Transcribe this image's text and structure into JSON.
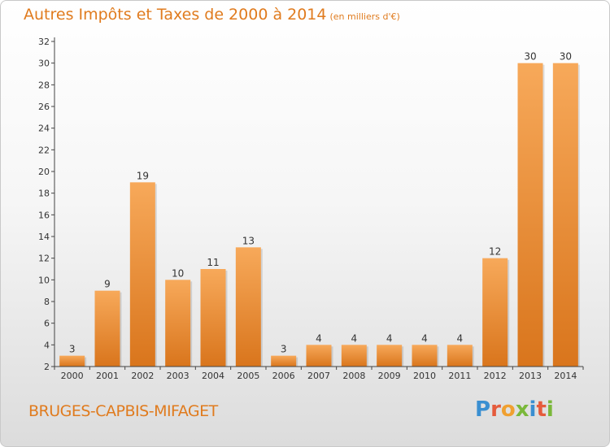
{
  "page": {
    "title": "Autres Impôts et Taxes de 2000 à 2014",
    "subtitle": "(en milliers d'€)",
    "commune": "BRUGES-CAPBIS-MIFAGET",
    "brand": [
      "P",
      "r",
      "o",
      "x",
      "i",
      "t",
      "i"
    ],
    "brand_colors": [
      "#3a8fd1",
      "#e55b3c",
      "#f0a030",
      "#7ab83a",
      "#3a8fd1",
      "#e55b3c",
      "#7ab83a"
    ]
  },
  "chart_data": {
    "type": "bar",
    "categories": [
      "2000",
      "2001",
      "2002",
      "2003",
      "2004",
      "2005",
      "2006",
      "2007",
      "2008",
      "2009",
      "2010",
      "2011",
      "2012",
      "2013",
      "2014"
    ],
    "values": [
      3,
      9,
      19,
      10,
      11,
      13,
      3,
      4,
      4,
      4,
      4,
      4,
      12,
      30,
      30
    ],
    "ylim": [
      2,
      32
    ],
    "yticks": [
      2,
      4,
      6,
      8,
      10,
      12,
      14,
      16,
      18,
      20,
      22,
      24,
      26,
      28,
      30,
      32
    ],
    "grid": false,
    "bar_color_light": "#f7a95a",
    "bar_color_dark": "#d9751c",
    "axis_color": "#444444",
    "text_color": "#e07b1e"
  }
}
